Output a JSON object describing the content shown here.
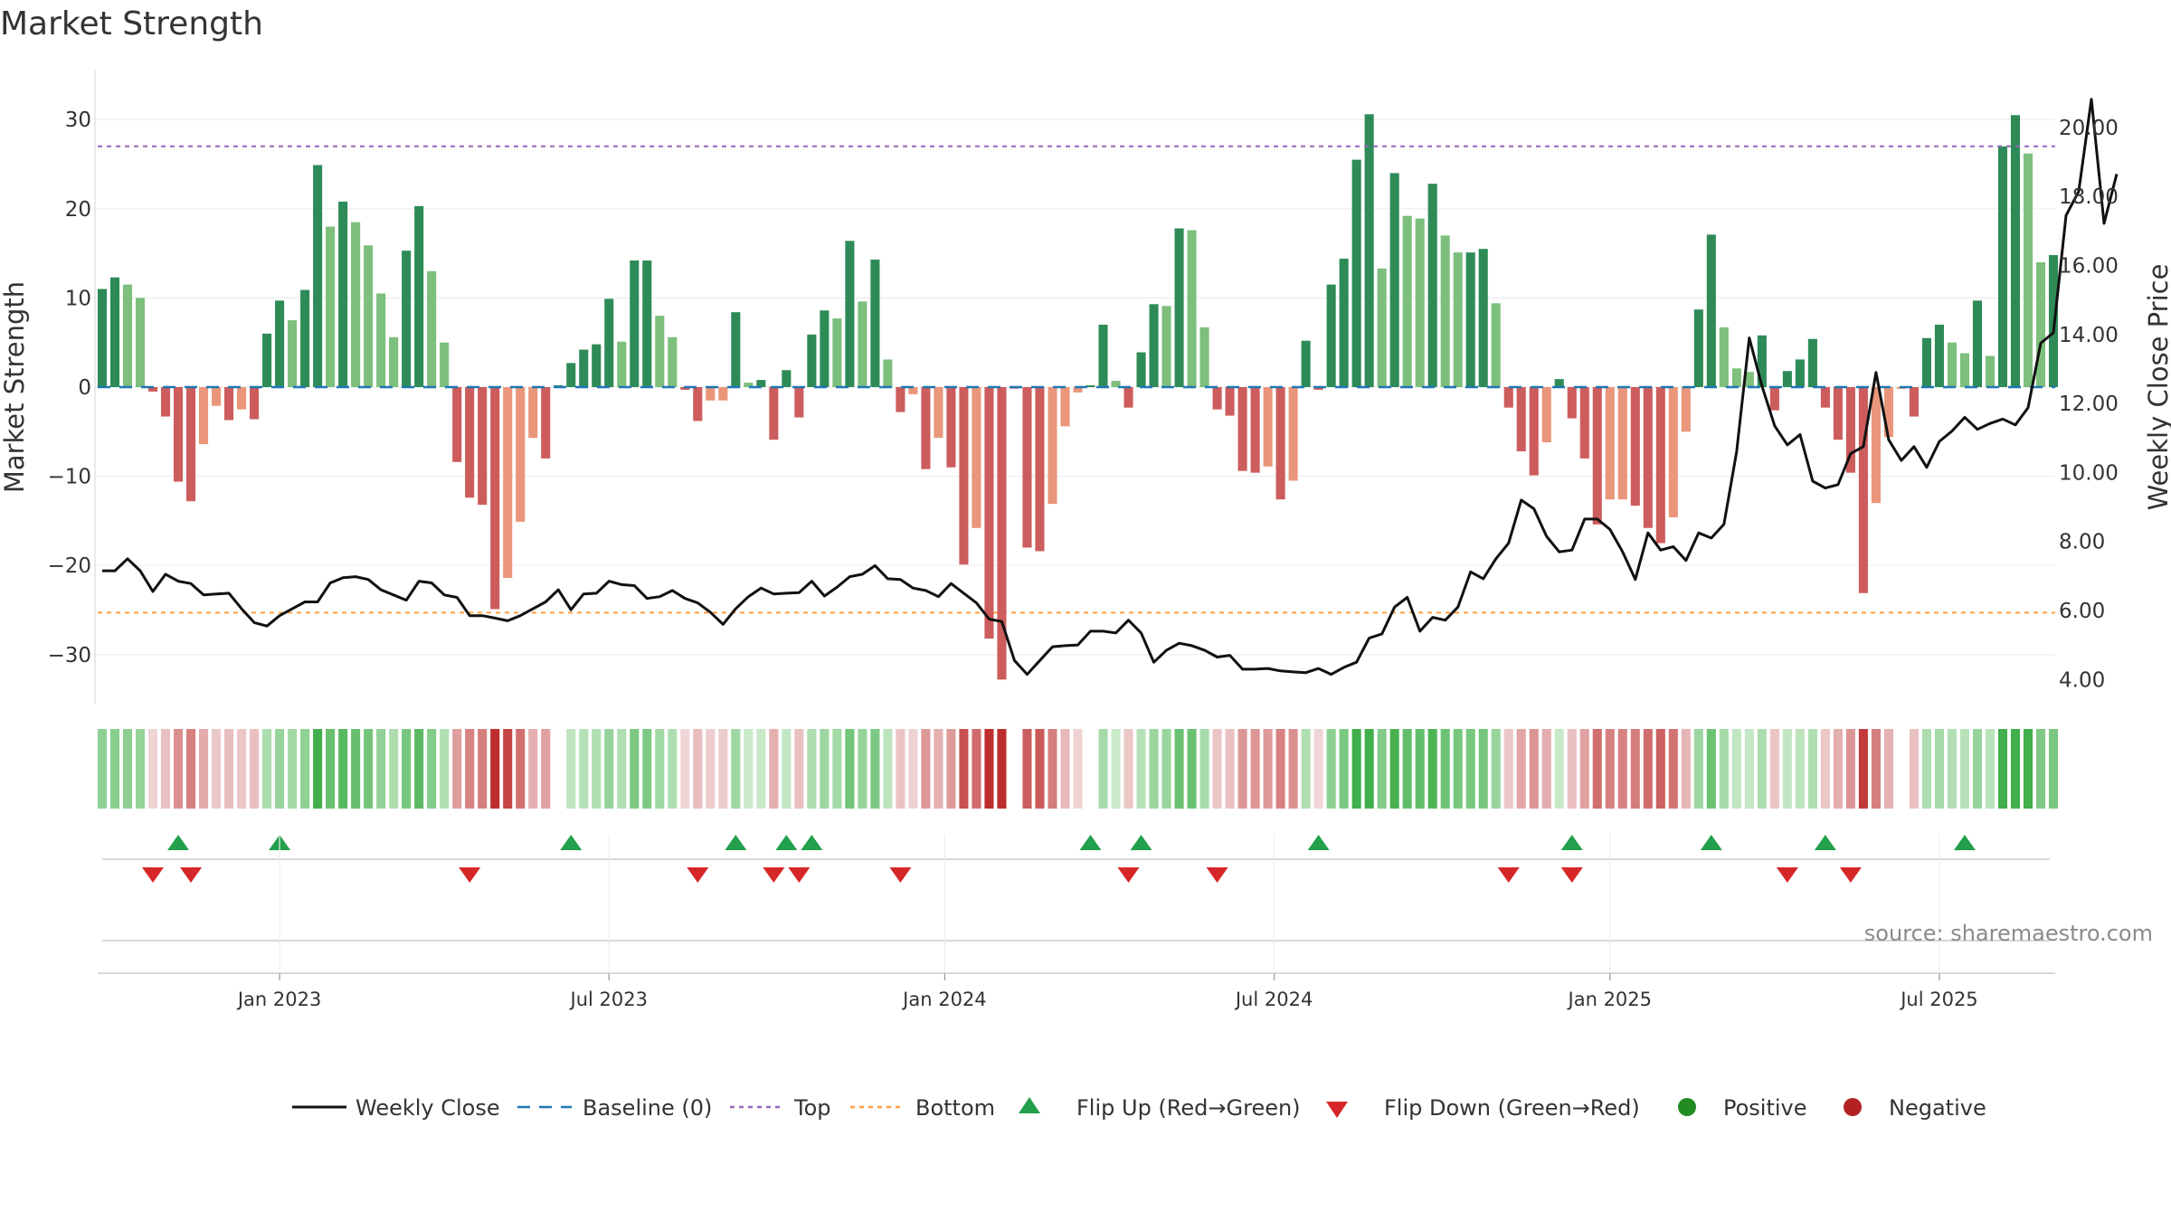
{
  "chart_data": {
    "type": "bar",
    "title": "Market Strength",
    "ylabel_left": "Market Strength",
    "ylabel_right": "Weekly Close Price",
    "source": "source: sharemaestro.com",
    "ylim_left": [
      -35.5,
      35.5
    ],
    "ylim_right": [
      3.3,
      21.65
    ],
    "left_ticks": [
      30,
      20,
      10,
      0,
      -10,
      -20,
      -30
    ],
    "left_tick_labels": [
      "30",
      "20",
      "10",
      "0",
      "−10",
      "−20",
      "−30"
    ],
    "right_ticks": [
      20,
      18,
      16,
      14,
      12,
      10,
      8,
      6,
      4
    ],
    "right_tick_labels": [
      "20.00",
      "18.00",
      "16.00",
      "14.00",
      "12.00",
      "10.00",
      "8.00",
      "6.00",
      "4.00"
    ],
    "top_line": 27,
    "bottom_line": -25.3,
    "baseline": 0,
    "date_labels": [
      {
        "label": "Jan 2023",
        "week": 14
      },
      {
        "label": "Jul 2023",
        "week": 40
      },
      {
        "label": "Jan 2024",
        "week": 66.5
      },
      {
        "label": "Jul 2024",
        "week": 92.5
      },
      {
        "label": "Jan 2025",
        "week": 119
      },
      {
        "label": "Jul 2025",
        "week": 145
      }
    ],
    "strength": [
      11,
      12.3,
      11.5,
      10,
      -0.5,
      -3.3,
      -10.6,
      -12.8,
      -6.4,
      -2.1,
      -3.7,
      -2.5,
      -3.6,
      6,
      9.7,
      7.5,
      10.9,
      24.9,
      18,
      20.8,
      18.5,
      15.9,
      10.5,
      5.6,
      15.3,
      20.3,
      13,
      5,
      -8.4,
      -12.4,
      -13.2,
      -24.9,
      -21.4,
      -15.1,
      -5.7,
      -8,
      0.2,
      2.7,
      4.2,
      4.8,
      9.9,
      5.1,
      14.2,
      14.2,
      8,
      5.6,
      -0.3,
      -3.8,
      -1.5,
      -1.5,
      8.4,
      0.5,
      0.8,
      -5.9,
      1.9,
      -3.4,
      5.9,
      8.6,
      7.7,
      16.4,
      9.6,
      14.3,
      3.1,
      -2.8,
      -0.8,
      -9.2,
      -5.7,
      -9,
      -19.9,
      -15.8,
      -28.2,
      -32.8,
      -0.2,
      -18,
      -18.4,
      -13.1,
      -4.4,
      -0.6,
      0.2,
      7,
      0.7,
      -2.3,
      3.9,
      9.3,
      9.1,
      17.8,
      17.6,
      6.7,
      -2.5,
      -3.2,
      -9.4,
      -9.6,
      -8.9,
      -12.6,
      -10.5,
      5.2,
      -0.3,
      11.5,
      14.4,
      25.5,
      30.6,
      13.3,
      24,
      19.2,
      18.9,
      22.8,
      17,
      15.1,
      15.1,
      15.5,
      9.4,
      -2.3,
      -7.2,
      -9.9,
      -6.2,
      0.9,
      -3.5,
      -8,
      -15.4,
      -12.6,
      -12.6,
      -13.3,
      -15.8,
      -17.5,
      -14.6,
      -5,
      8.7,
      17.1,
      6.7,
      2.1,
      1.7,
      5.8,
      -2.6,
      1.8,
      3.1,
      5.4,
      -2.3,
      -5.9,
      -9.6,
      -23.1,
      -13,
      -5.6,
      -0.2,
      -3.3,
      5.5,
      7,
      5,
      3.8,
      9.7,
      3.5,
      27,
      30.5,
      26.2,
      14,
      14.8
    ],
    "close": [
      7.15,
      7.15,
      7.5,
      7.15,
      6.55,
      7.05,
      6.85,
      6.78,
      6.45,
      6.48,
      6.5,
      6.05,
      5.65,
      5.55,
      5.85,
      6.05,
      6.25,
      6.25,
      6.8,
      6.95,
      6.98,
      6.9,
      6.6,
      6.45,
      6.3,
      6.85,
      6.8,
      6.45,
      6.38,
      5.85,
      5.85,
      5.78,
      5.7,
      5.85,
      6.05,
      6.25,
      6.6,
      6.02,
      6.48,
      6.5,
      6.85,
      6.75,
      6.72,
      6.35,
      6.4,
      6.58,
      6.35,
      6.22,
      5.95,
      5.6,
      6.05,
      6.4,
      6.65,
      6.48,
      6.5,
      6.52,
      6.85,
      6.42,
      6.68,
      6.98,
      7.05,
      7.3,
      6.92,
      6.9,
      6.65,
      6.58,
      6.4,
      6.78,
      6.5,
      6.22,
      5.75,
      5.68,
      4.55,
      4.15,
      4.55,
      4.95,
      4.98,
      5,
      5.4,
      5.4,
      5.35,
      5.72,
      5.35,
      4.5,
      4.85,
      5.05,
      4.98,
      4.85,
      4.65,
      4.7,
      4.3,
      4.3,
      4.32,
      4.25,
      4.22,
      4.2,
      4.32,
      4.15,
      4.35,
      4.5,
      5.2,
      5.32,
      6.1,
      6.38,
      5.4,
      5.8,
      5.72,
      6.1,
      7.12,
      6.92,
      7.5,
      7.95,
      9.2,
      8.95,
      8.15,
      7.7,
      7.75,
      8.65,
      8.65,
      8.35,
      7.7,
      6.9,
      8.25,
      7.75,
      7.85,
      7.45,
      8.25,
      8.1,
      8.5,
      10.6,
      13.9,
      12.5,
      11.35,
      10.8,
      11.1,
      9.75,
      9.55,
      9.65,
      10.55,
      10.75,
      12.9,
      10.95,
      10.35,
      10.75,
      10.15,
      10.9,
      11.2,
      11.6,
      11.25,
      11.42,
      11.55,
      11.38,
      11.88,
      13.75,
      14.05,
      17.45,
      18.15,
      20.82,
      17.22,
      18.65
    ],
    "flip_up_weeks": [
      6,
      14,
      37,
      50,
      54,
      56,
      78,
      82,
      96,
      116,
      127,
      136,
      147
    ],
    "flip_down_weeks": [
      4,
      7,
      29,
      47,
      53,
      55,
      63,
      81,
      88,
      111,
      116,
      133,
      138
    ],
    "legend": {
      "weekly_close": "Weekly Close",
      "baseline": "Baseline (0)",
      "top": "Top",
      "bottom": "Bottom",
      "flip_up": "Flip Up (Red→Green)",
      "flip_down": "Flip Down (Green→Red)",
      "positive": "Positive",
      "negative": "Negative"
    },
    "colors": {
      "green_strong": "#2e8b57",
      "green_light": "#7dbf7d",
      "red_strong": "#cd5c5c",
      "red_light": "#e9967a",
      "close_line": "#111111",
      "baseline": "#1f77b4",
      "top": "#9467bd",
      "bottom": "#ff9f40",
      "flip_up": "#22a04b",
      "flip_down": "#d62728",
      "positive": "#228b22",
      "negative": "#b22222"
    }
  }
}
